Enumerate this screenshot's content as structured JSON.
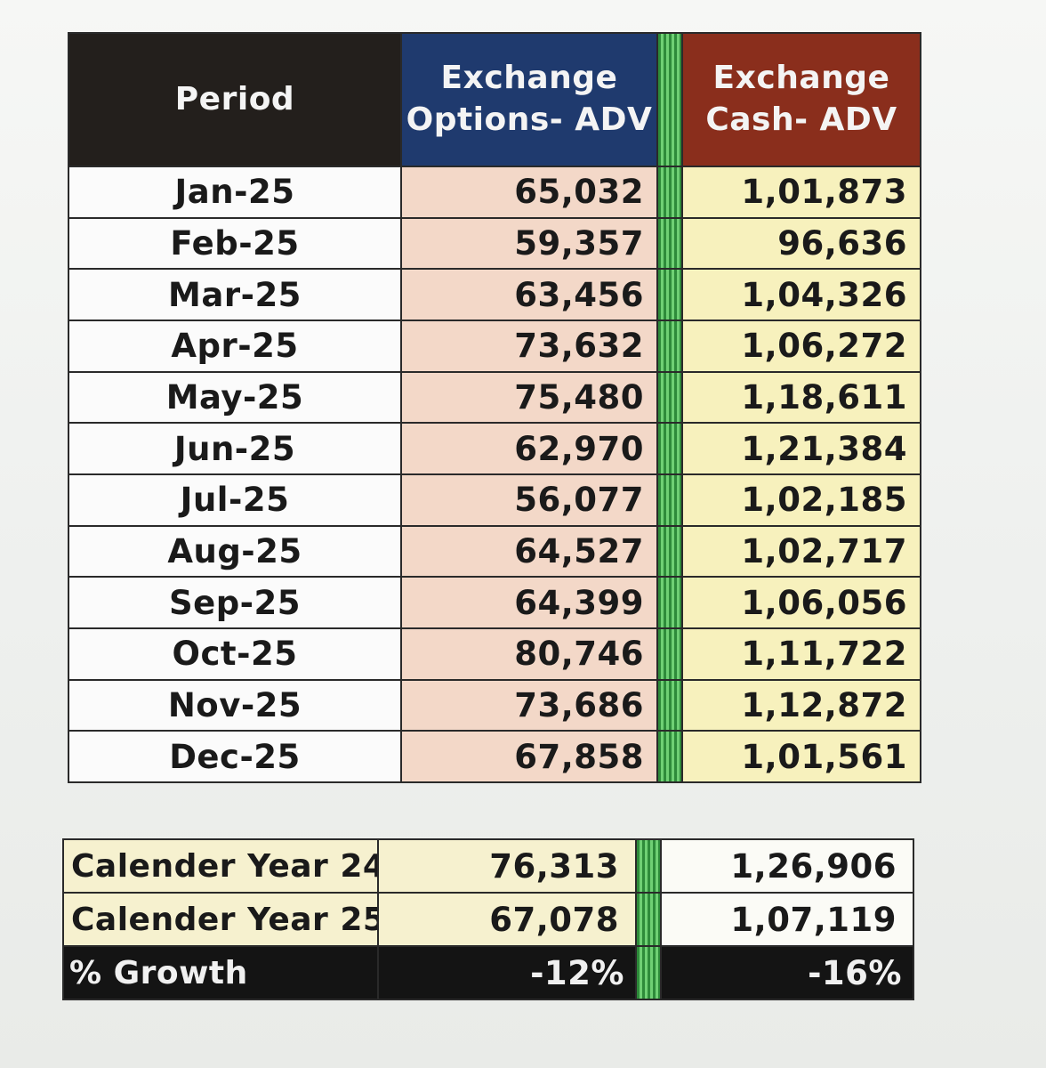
{
  "headers": {
    "period": "Period",
    "options_line1": "Exchange",
    "options_line2": "Options- ADV",
    "cash_line1": "Exchange",
    "cash_line2": "Cash- ADV"
  },
  "rows": [
    {
      "period": "Jan-25",
      "options": "65,032",
      "cash": "1,01,873"
    },
    {
      "period": "Feb-25",
      "options": "59,357",
      "cash": "96,636"
    },
    {
      "period": "Mar-25",
      "options": "63,456",
      "cash": "1,04,326"
    },
    {
      "period": "Apr-25",
      "options": "73,632",
      "cash": "1,06,272"
    },
    {
      "period": "May-25",
      "options": "75,480",
      "cash": "1,18,611"
    },
    {
      "period": "Jun-25",
      "options": "62,970",
      "cash": "1,21,384"
    },
    {
      "period": "Jul-25",
      "options": "56,077",
      "cash": "1,02,185"
    },
    {
      "period": "Aug-25",
      "options": "64,527",
      "cash": "1,02,717"
    },
    {
      "period": "Sep-25",
      "options": "64,399",
      "cash": "1,06,056"
    },
    {
      "period": "Oct-25",
      "options": "80,746",
      "cash": "1,11,722"
    },
    {
      "period": "Nov-25",
      "options": "73,686",
      "cash": "1,12,872"
    },
    {
      "period": "Dec-25",
      "options": "67,858",
      "cash": "1,01,561"
    }
  ],
  "summary": [
    {
      "label": "Calender Year 24",
      "options": "76,313",
      "cash": "1,26,906"
    },
    {
      "label": "Calender Year 25",
      "options": "67,078",
      "cash": "1,07,119"
    },
    {
      "label": "% Growth",
      "options": "-12%",
      "cash": "-16%"
    }
  ],
  "colors": {
    "period_header": "#231f1c",
    "options_header": "#1f3a6e",
    "cash_header": "#8a2e1c",
    "options_fill": "#f3d8c8",
    "cash_fill": "#f7f1bd",
    "separator": "#2e8b3a",
    "growth_row": "#141414"
  }
}
